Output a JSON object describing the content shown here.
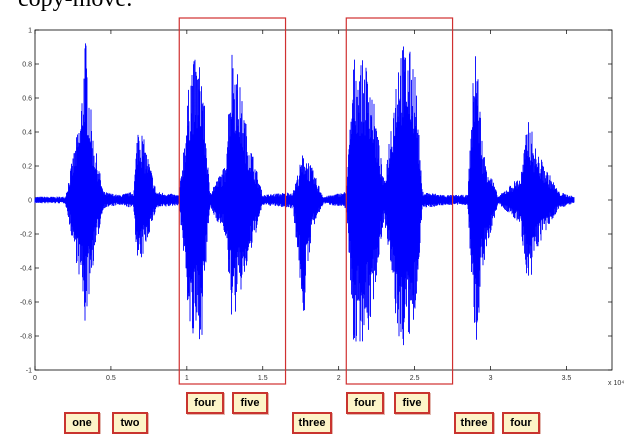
{
  "caption": "copy-move:",
  "chart_data": {
    "type": "line",
    "title": "",
    "xlabel": "",
    "ylabel": "",
    "x_exponent_label": "x 10⁴",
    "xlim": [
      0,
      3.8
    ],
    "ylim": [
      -1,
      1
    ],
    "x_ticks": [
      0,
      0.5,
      1,
      1.5,
      2,
      2.5,
      3,
      3.5
    ],
    "x_tick_labels": [
      "0",
      "0.5",
      "1",
      "1.5",
      "2",
      "2.5",
      "3",
      "3.5"
    ],
    "y_ticks": [
      -1,
      -0.8,
      -0.6,
      -0.4,
      -0.2,
      0,
      0.2,
      0.4,
      0.6,
      0.8,
      1
    ],
    "y_tick_labels": [
      "-1",
      "-0.8",
      "-0.6",
      "-0.4",
      "-0.2",
      "0",
      "0.2",
      "0.4",
      "0.6",
      "0.8",
      "1"
    ],
    "grid": false,
    "series": [
      {
        "color": "#0000ff",
        "x": [
          0,
          0.2,
          0.3,
          0.33,
          0.38,
          0.45,
          0.55,
          0.65,
          0.68,
          0.72,
          0.8,
          0.95,
          1.03,
          1.1,
          1.15,
          1.25,
          1.3,
          1.4,
          1.5,
          1.7,
          1.77,
          1.82,
          1.9,
          2.05,
          2.1,
          2.2,
          2.3,
          2.4,
          2.5,
          2.55,
          2.7,
          2.85,
          2.9,
          2.95,
          3.05,
          3.2,
          3.25,
          3.3,
          3.45,
          3.55
        ],
        "y_max": [
          0.02,
          0.02,
          0.5,
          1.0,
          0.4,
          0.05,
          0.03,
          0.05,
          0.5,
          0.35,
          0.05,
          0.03,
          0.85,
          0.8,
          0.05,
          0.2,
          0.95,
          0.4,
          0.03,
          0.05,
          0.3,
          0.2,
          0.02,
          0.05,
          0.85,
          0.8,
          0.1,
          0.95,
          0.85,
          0.05,
          0.03,
          0.03,
          1.0,
          0.3,
          0.02,
          0.15,
          0.5,
          0.3,
          0.05,
          0.02
        ],
        "y_min": [
          -0.02,
          -0.02,
          -0.5,
          -0.75,
          -0.4,
          -0.05,
          -0.03,
          -0.05,
          -0.45,
          -0.3,
          -0.05,
          -0.03,
          -0.88,
          -0.8,
          -0.05,
          -0.2,
          -0.75,
          -0.4,
          -0.03,
          -0.05,
          -0.72,
          -0.2,
          -0.02,
          -0.05,
          -0.88,
          -0.8,
          -0.1,
          -0.9,
          -0.8,
          -0.05,
          -0.03,
          -0.03,
          -0.95,
          -0.4,
          -0.02,
          -0.15,
          -0.62,
          -0.3,
          -0.05,
          -0.02
        ]
      }
    ],
    "highlight_regions": [
      {
        "x0": 0.95,
        "x1": 1.65,
        "color": "#d03030"
      },
      {
        "x0": 2.05,
        "x1": 2.75,
        "color": "#d03030"
      }
    ]
  },
  "word_labels": [
    {
      "text": "one"
    },
    {
      "text": "two"
    },
    {
      "text": "four"
    },
    {
      "text": "five"
    },
    {
      "text": "three"
    },
    {
      "text": "four"
    },
    {
      "text": "five"
    },
    {
      "text": "three"
    },
    {
      "text": "four"
    }
  ]
}
